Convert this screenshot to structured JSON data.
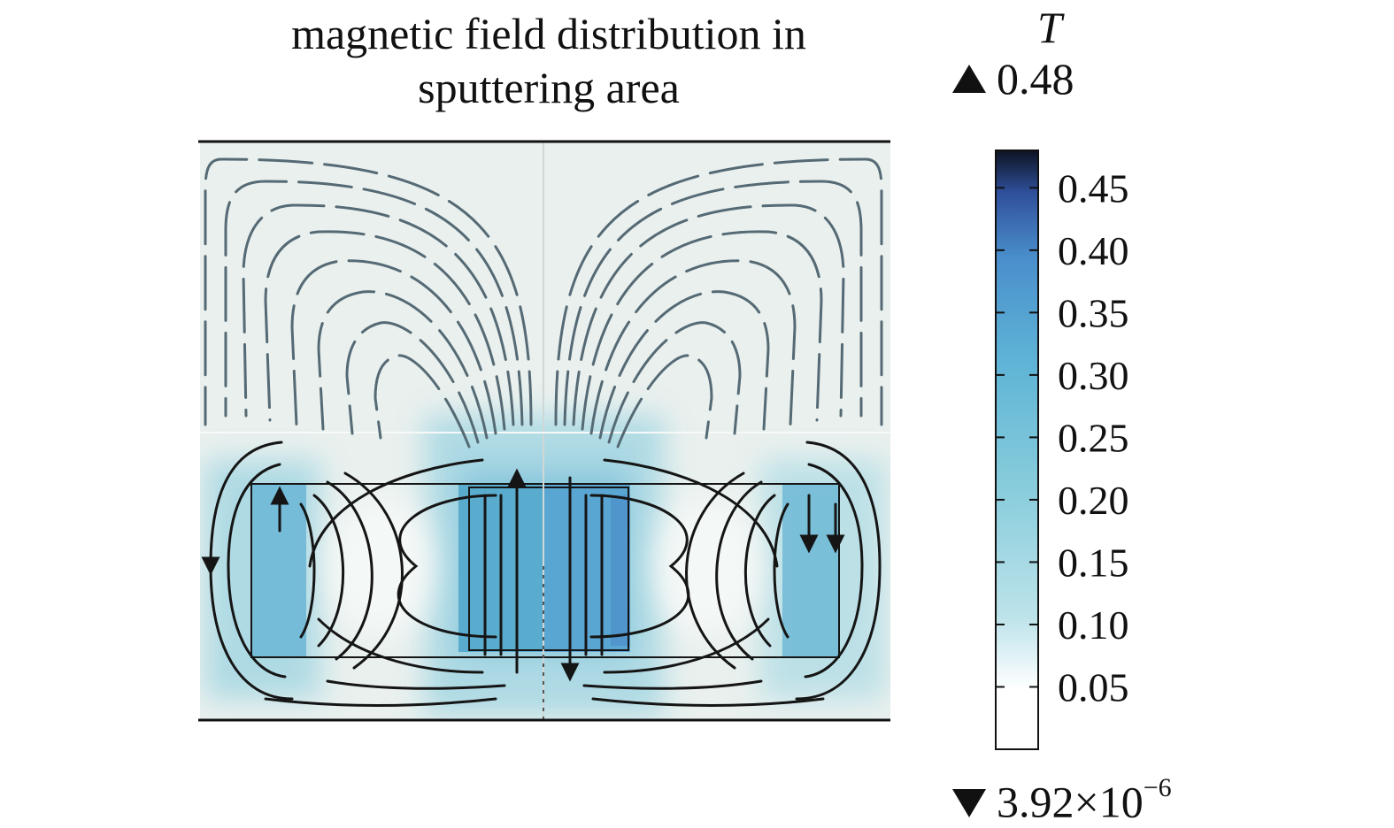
{
  "title": {
    "line1": "magnetic field distribution in",
    "line2": "sputtering area"
  },
  "colorbar": {
    "unit": "T",
    "max_label": "0.48",
    "min_label_base": "3.92×10",
    "min_label_exp": "−6",
    "ticks": [
      {
        "value": 0.45,
        "label": "0.45"
      },
      {
        "value": 0.4,
        "label": "0.40"
      },
      {
        "value": 0.35,
        "label": "0.35"
      },
      {
        "value": 0.3,
        "label": "0.30"
      },
      {
        "value": 0.25,
        "label": "0.25"
      },
      {
        "value": 0.2,
        "label": "0.20"
      },
      {
        "value": 0.15,
        "label": "0.15"
      },
      {
        "value": 0.1,
        "label": "0.10"
      },
      {
        "value": 0.05,
        "label": "0.05"
      }
    ],
    "range": [
      0.0,
      0.48
    ],
    "colors": {
      "low": "#ffffff",
      "mid": "#5eb3d6",
      "high": "#3b66b4",
      "top": "#0d1322"
    }
  },
  "field_colors": {
    "background": "#e9f0ee",
    "streamline_light": "#556a74",
    "streamline_dark": "#151515",
    "magnet": "#5aaccf",
    "halo": "#a8d8e3"
  }
}
